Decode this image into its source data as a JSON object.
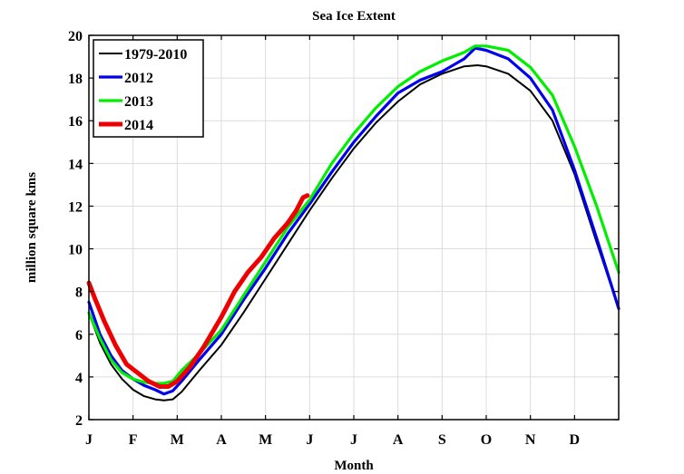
{
  "chart_data": {
    "type": "line",
    "title": "Sea Ice Extent",
    "xlabel": "Month",
    "ylabel": "million square kms",
    "xlim": [
      0,
      12
    ],
    "ylim": [
      2,
      20
    ],
    "yticks": [
      2,
      4,
      6,
      8,
      10,
      12,
      14,
      16,
      18,
      20
    ],
    "xtick_labels": [
      "J",
      "F",
      "M",
      "A",
      "M",
      "J",
      "J",
      "A",
      "S",
      "O",
      "N",
      "D"
    ],
    "grid": true,
    "legend_position": "top-left",
    "series": [
      {
        "name": "1979-2010",
        "color": "#000000",
        "x": [
          0,
          0.25,
          0.5,
          0.75,
          1.0,
          1.25,
          1.5,
          1.7,
          1.9,
          2.1,
          2.5,
          3.0,
          3.5,
          4.0,
          4.5,
          5.0,
          5.5,
          6.0,
          6.5,
          7.0,
          7.5,
          8.0,
          8.5,
          8.8,
          9.0,
          9.5,
          10.0,
          10.5,
          11.0,
          11.5,
          12.0
        ],
        "y": [
          7.0,
          5.6,
          4.6,
          3.9,
          3.4,
          3.1,
          2.95,
          2.9,
          2.95,
          3.3,
          4.3,
          5.5,
          7.0,
          8.6,
          10.2,
          11.8,
          13.3,
          14.7,
          15.9,
          16.9,
          17.7,
          18.2,
          18.55,
          18.6,
          18.55,
          18.2,
          17.4,
          16.0,
          13.5,
          10.3,
          7.2
        ]
      },
      {
        "name": "2012",
        "color": "#0000ee",
        "x": [
          0,
          0.25,
          0.5,
          0.75,
          1.0,
          1.25,
          1.5,
          1.7,
          1.9,
          2.1,
          2.5,
          3.0,
          3.5,
          4.0,
          4.5,
          5.0,
          5.5,
          6.0,
          6.5,
          7.0,
          7.5,
          8.0,
          8.5,
          8.75,
          9.0,
          9.5,
          10.0,
          10.5,
          11.0,
          11.5,
          12.0
        ],
        "y": [
          7.5,
          6.0,
          5.0,
          4.3,
          3.9,
          3.6,
          3.4,
          3.2,
          3.35,
          3.8,
          4.8,
          6.0,
          7.6,
          9.1,
          10.7,
          12.1,
          13.6,
          15.0,
          16.2,
          17.3,
          17.9,
          18.3,
          18.9,
          19.4,
          19.3,
          18.9,
          18.0,
          16.5,
          13.7,
          10.5,
          7.2
        ]
      },
      {
        "name": "2013",
        "color": "#00ee00",
        "x": [
          0,
          0.25,
          0.5,
          0.75,
          1.0,
          1.25,
          1.5,
          1.7,
          1.9,
          2.1,
          2.5,
          3.0,
          3.5,
          4.0,
          4.5,
          5.0,
          5.5,
          6.0,
          6.5,
          7.0,
          7.5,
          8.0,
          8.5,
          8.75,
          9.0,
          9.5,
          10.0,
          10.5,
          11.0,
          11.5,
          12.0
        ],
        "y": [
          7.0,
          5.8,
          4.8,
          4.2,
          3.9,
          3.75,
          3.7,
          3.7,
          3.8,
          4.3,
          5.1,
          6.2,
          7.8,
          9.4,
          11.0,
          12.3,
          14.0,
          15.4,
          16.6,
          17.6,
          18.3,
          18.8,
          19.2,
          19.5,
          19.5,
          19.3,
          18.5,
          17.2,
          14.8,
          12.0,
          8.9
        ]
      },
      {
        "name": "2014",
        "color": "#ee0000",
        "x": [
          0,
          0.15,
          0.35,
          0.6,
          0.85,
          1.1,
          1.35,
          1.6,
          1.8,
          2.0,
          2.3,
          2.6,
          3.0,
          3.3,
          3.6,
          3.9,
          4.2,
          4.5,
          4.7,
          4.85,
          4.95
        ],
        "y": [
          8.4,
          7.6,
          6.6,
          5.5,
          4.6,
          4.2,
          3.8,
          3.55,
          3.55,
          3.8,
          4.5,
          5.4,
          6.8,
          8.0,
          8.9,
          9.6,
          10.5,
          11.2,
          11.8,
          12.4,
          12.5
        ]
      }
    ]
  }
}
